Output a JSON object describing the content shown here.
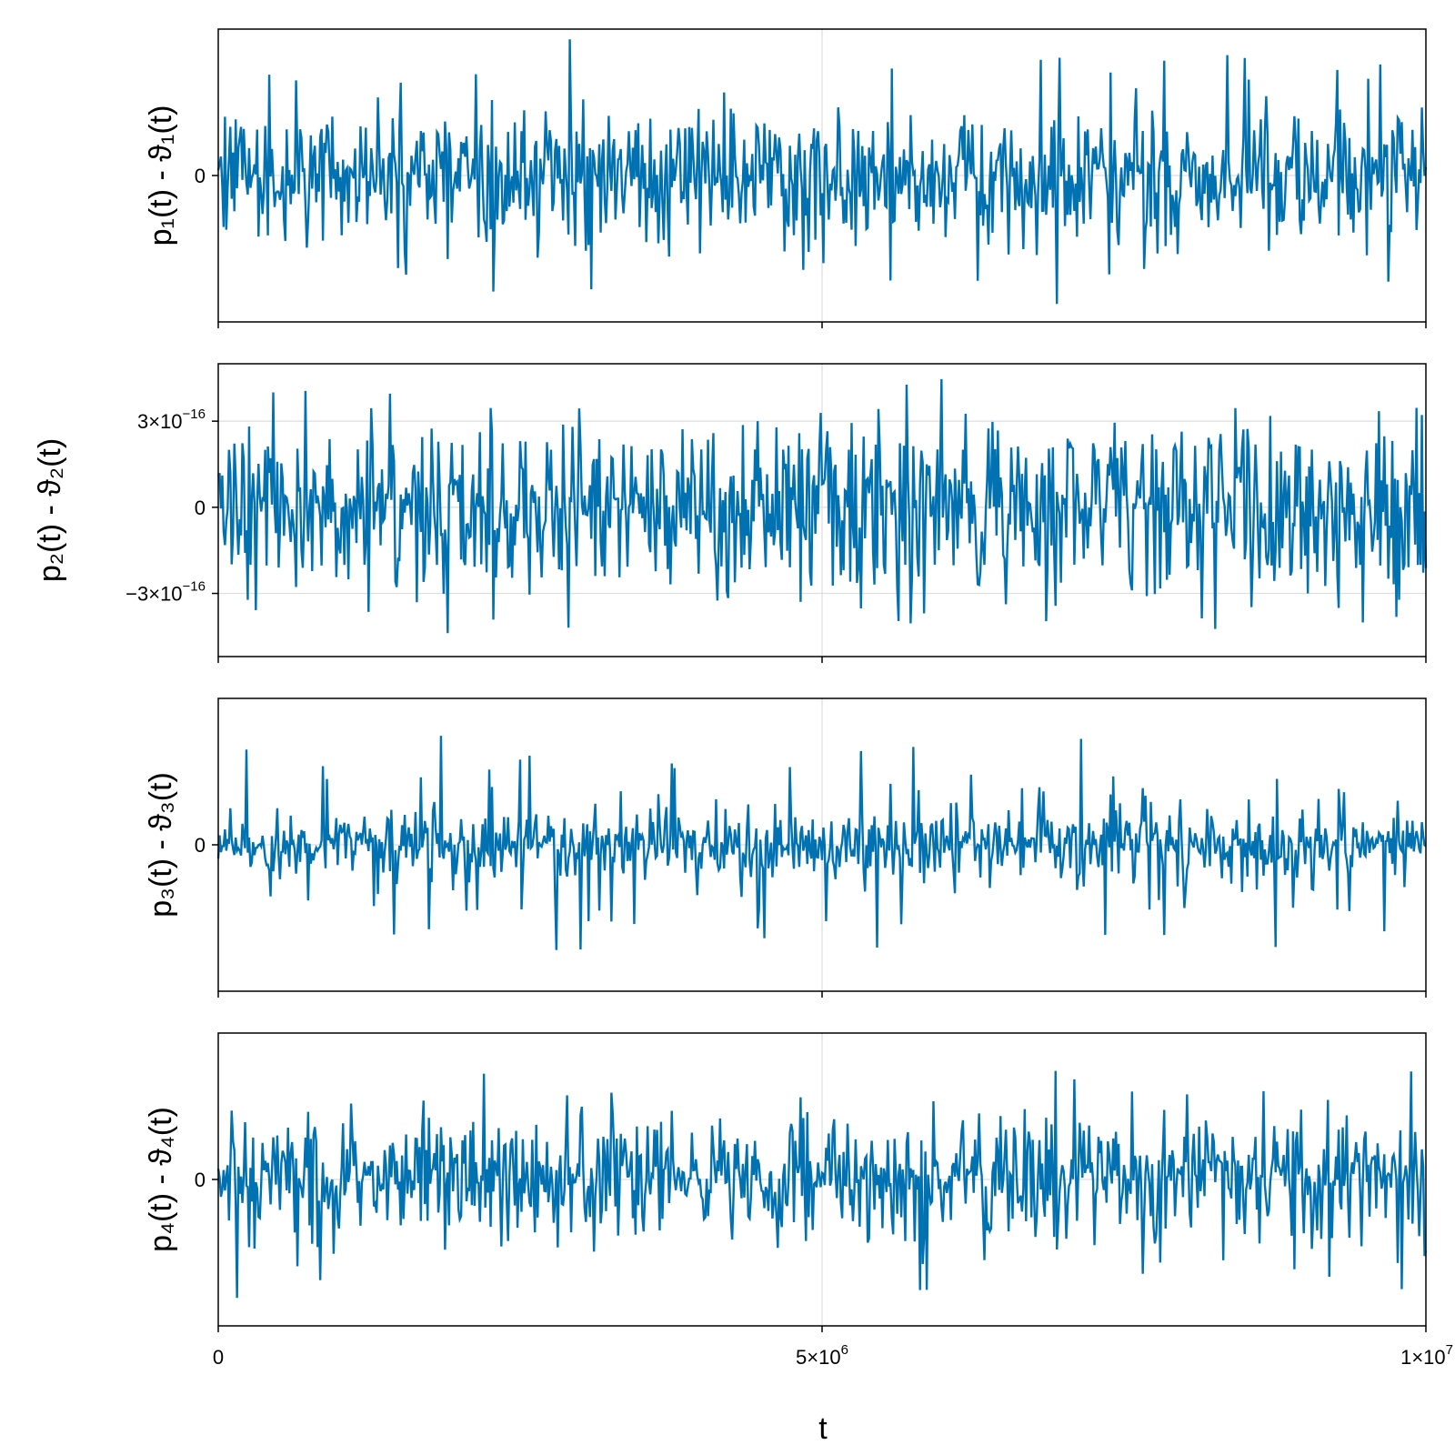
{
  "figure": {
    "series_color": "#0072b2",
    "frame_color": "#000000",
    "grid_color": "#dddddd"
  },
  "chart_data": [
    {
      "type": "line",
      "ylabel": "p₁(t) - ϑ₁(t)",
      "xlim": [
        0,
        10000000
      ],
      "yticks": [
        {
          "value": 0,
          "label": "0"
        }
      ],
      "ylim": [
        -1.0,
        1.0
      ],
      "amplitude": {
        "typical": 0.3,
        "spike_max": 0.95
      },
      "series": [
        {
          "values_note": "",
          "points": []
        }
      ]
    },
    {
      "type": "line",
      "ylabel": "p₂(t) - ϑ₂(t)",
      "xlim": [
        0,
        10000000
      ],
      "yticks": [
        {
          "value": 3e-16,
          "base": "3×10",
          "exp": "−16"
        },
        {
          "value": 0,
          "base": "0",
          "exp": ""
        },
        {
          "value": -3e-16,
          "base": "−3×10",
          "exp": "−16"
        }
      ],
      "ylim": [
        -5.2e-16,
        5e-16
      ],
      "amplitude": {
        "typical": 2e-16,
        "spike_max": 4.7e-16
      },
      "series": [
        {
          "points": []
        }
      ]
    },
    {
      "type": "line",
      "ylabel": "p₃(t) - ϑ₃(t)",
      "xlim": [
        0,
        10000000
      ],
      "yticks": [
        {
          "value": 0,
          "label": "0"
        }
      ],
      "ylim": [
        -1.0,
        1.0
      ],
      "amplitude": {
        "typical": 0.15,
        "spike_max": 0.9
      },
      "series": [
        {
          "points": []
        }
      ]
    },
    {
      "type": "line",
      "ylabel": "p₄(t) - ϑ₄(t)",
      "xlim": [
        0,
        10000000
      ],
      "yticks": [
        {
          "value": 0,
          "label": "0"
        }
      ],
      "ylim": [
        -1.0,
        1.0
      ],
      "amplitude": {
        "typical": 0.25,
        "spike_max": 0.85
      },
      "series": [
        {
          "points": []
        }
      ]
    }
  ],
  "xaxis": {
    "label": "t",
    "ticks": [
      {
        "value": 0,
        "base": "0",
        "exp": ""
      },
      {
        "value": 5000000,
        "base": "5×10",
        "exp": "6"
      },
      {
        "value": 10000000,
        "base": "1×10",
        "exp": "7"
      }
    ]
  }
}
